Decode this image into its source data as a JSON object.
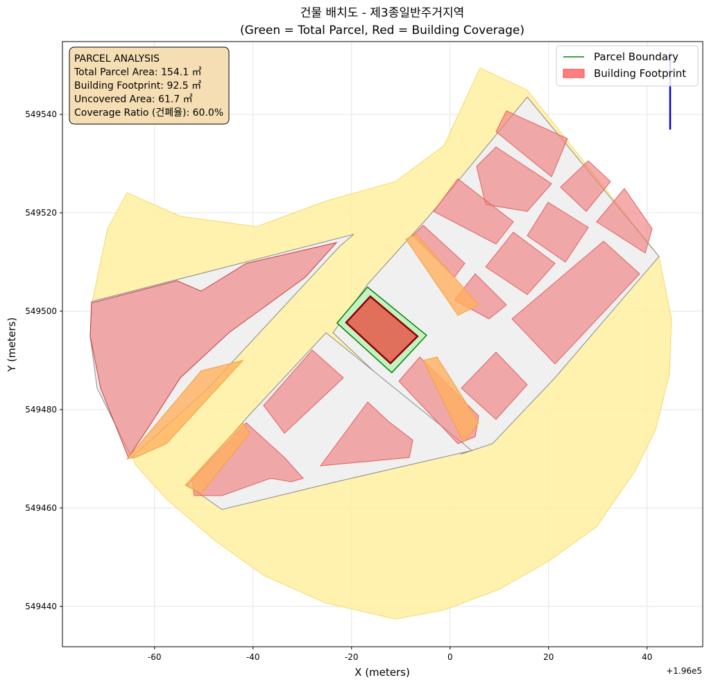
{
  "chart_data": {
    "type": "polygon-map",
    "title": "건물 배치도 - 제3종일반주거지역",
    "subtitle": "(Green = Total Parcel, Red = Building Coverage)",
    "xlabel": "X (meters)",
    "ylabel": "Y (meters)",
    "x_offset_label": "+1.96e5",
    "xlim": [
      -78.7,
      51.3
    ],
    "ylim": [
      549431.8,
      549554.8
    ],
    "xticks": [
      -60,
      -40,
      -20,
      0,
      20,
      40
    ],
    "yticks": [
      549440,
      549460,
      549480,
      549500,
      549520,
      549540
    ],
    "grid": true,
    "legend_loc": "upper right",
    "annotation": [
      "PARCEL ANALYSIS",
      "Total Parcel Area: 154.1 ㎡",
      "Building Footprint: 92.5 ㎡",
      "Uncovered Area: 61.7 ㎡",
      "Coverage Ratio (건폐율): 60.0%"
    ],
    "series": [
      {
        "name": "Parcel Boundary",
        "legend": "line",
        "color": "#008000",
        "facecolor": "#c4f2c4",
        "x": [
          -22.96,
          -16.76,
          -4.79,
          -11.83
        ],
        "y": [
          549497.6,
          549504.9,
          549495.1,
          549487.5
        ]
      },
      {
        "name": "Building Footprint",
        "legend": "patch",
        "color": "#ff7f7f",
        "facecolor": "#e0705c",
        "edgecolor": "#8b0000",
        "x": [
          -21.1,
          -16.2,
          -6.6,
          -12.1
        ],
        "y": [
          549497.7,
          549503.0,
          549494.9,
          549489.4
        ]
      }
    ]
  }
}
